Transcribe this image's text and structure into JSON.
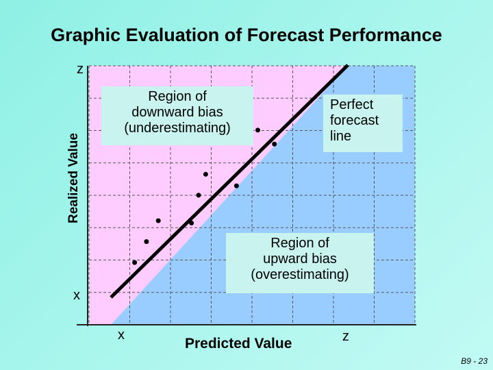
{
  "title": "Graphic Evaluation of Forecast Performance",
  "axes": {
    "y_label": "Realized Value",
    "x_label": "Predicted Value",
    "y_top": "z",
    "y_bottom": "x",
    "x_left": "x",
    "x_right": "z"
  },
  "regions": {
    "downward_bias": [
      "Region of",
      "downward bias",
      "(underestimating)"
    ],
    "upward_bias": [
      "Region of",
      "upward bias",
      "(overestimating)"
    ],
    "perfect_line": [
      "Perfect",
      "forecast",
      "line"
    ]
  },
  "colors": {
    "background": "#a6f5ec",
    "upper_region": "#ffccff",
    "lower_region": "#99ccff",
    "label_box": "#c9f3ef",
    "grid": "#555555"
  },
  "chart_data": {
    "type": "scatter",
    "title": "Graphic Evaluation of Forecast Performance",
    "xlabel": "Predicted Value",
    "ylabel": "Realized Value",
    "xlim": [
      0,
      10
    ],
    "ylim": [
      0,
      10
    ],
    "grid": true,
    "reference_line": {
      "name": "Perfect forecast line",
      "from": [
        0,
        0
      ],
      "to": [
        10,
        10
      ]
    },
    "points": [
      {
        "x": 1.0,
        "y": 1.5
      },
      {
        "x": 1.5,
        "y": 2.4
      },
      {
        "x": 2.0,
        "y": 3.3
      },
      {
        "x": 3.4,
        "y": 3.2
      },
      {
        "x": 3.7,
        "y": 4.4
      },
      {
        "x": 4.0,
        "y": 5.3
      },
      {
        "x": 5.3,
        "y": 4.8
      },
      {
        "x": 5.2,
        "y": 6.8
      },
      {
        "x": 6.2,
        "y": 7.2
      },
      {
        "x": 6.9,
        "y": 6.6
      }
    ]
  },
  "slide_number": "B9 - 23"
}
